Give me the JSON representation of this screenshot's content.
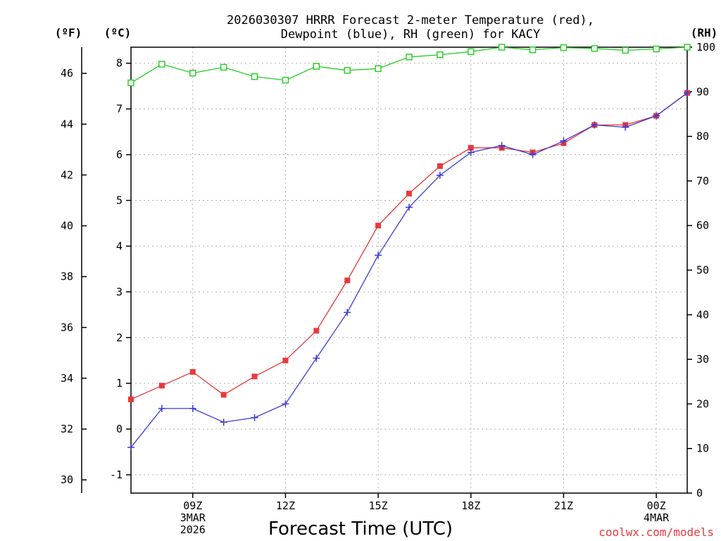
{
  "chart_data": {
    "type": "line",
    "title_line1": "2026030307 HRRR Forecast 2-meter Temperature (red),",
    "title_line2": "Dewpoint (blue), RH (green) for KACY",
    "xlabel": "Forecast Time (UTC)",
    "credit": "coolwx.com/models",
    "units": {
      "fahrenheit": "(ºF)",
      "celsius": "(ºC)",
      "rh": "(RH)"
    },
    "x_hours": [
      7,
      8,
      9,
      10,
      11,
      12,
      13,
      14,
      15,
      16,
      17,
      18,
      19,
      20,
      21,
      22,
      23,
      24,
      25
    ],
    "x_range": [
      7,
      25
    ],
    "x_ticks": [
      {
        "hour": 9,
        "lines": [
          "09Z",
          "3MAR",
          "2026"
        ]
      },
      {
        "hour": 12,
        "lines": [
          "12Z"
        ]
      },
      {
        "hour": 15,
        "lines": [
          "15Z"
        ]
      },
      {
        "hour": 18,
        "lines": [
          "18Z"
        ]
      },
      {
        "hour": 21,
        "lines": [
          "21Z"
        ]
      },
      {
        "hour": 24,
        "lines": [
          "00Z",
          "4MAR"
        ]
      }
    ],
    "celsius_range": [
      -1.4,
      8.35
    ],
    "celsius_ticks": [
      "-1",
      "0",
      "1",
      "2",
      "3",
      "4",
      "5",
      "6",
      "7",
      "8"
    ],
    "fahrenheit_ticks": [
      "30",
      "32",
      "34",
      "36",
      "38",
      "40",
      "42",
      "44",
      "46"
    ],
    "rh_range": [
      0,
      100
    ],
    "rh_ticks": [
      "0",
      "10",
      "20",
      "30",
      "40",
      "50",
      "60",
      "70",
      "80",
      "90",
      "100"
    ],
    "series": [
      {
        "name": "Temperature",
        "axis": "celsius",
        "color": "#e8393c",
        "marker": "filled-square",
        "values": [
          0.65,
          0.95,
          1.25,
          0.75,
          1.15,
          1.5,
          2.15,
          3.25,
          4.45,
          5.15,
          5.75,
          6.15,
          6.15,
          6.05,
          6.25,
          6.65,
          6.65,
          6.85,
          7.35
        ]
      },
      {
        "name": "Dewpoint",
        "axis": "celsius",
        "color": "#3b3bd6",
        "marker": "plus",
        "values": [
          -0.4,
          0.45,
          0.45,
          0.15,
          0.25,
          0.55,
          1.55,
          2.55,
          3.8,
          4.85,
          5.55,
          6.05,
          6.2,
          6.0,
          6.3,
          6.65,
          6.6,
          6.85,
          7.35
        ]
      },
      {
        "name": "RH",
        "axis": "rh",
        "color": "#22cc22",
        "marker": "open-square",
        "values": [
          92.0,
          96.2,
          94.2,
          95.5,
          93.4,
          92.6,
          95.7,
          94.8,
          95.2,
          97.8,
          98.3,
          99.0,
          100.0,
          99.4,
          99.9,
          99.7,
          99.3,
          99.6,
          100.0
        ]
      }
    ]
  }
}
